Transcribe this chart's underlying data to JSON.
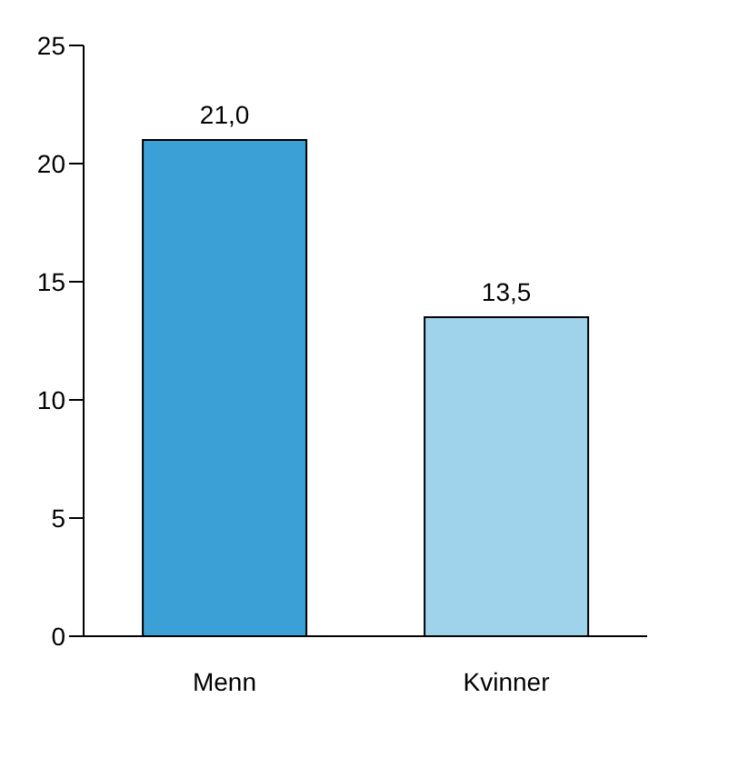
{
  "chart_data": {
    "type": "bar",
    "categories": [
      "Menn",
      "Kvinner"
    ],
    "values": [
      21.0,
      13.5
    ],
    "colors": [
      "#3aa0d5",
      "#9fd3ec"
    ],
    "value_labels": [
      "21,0",
      "13,5"
    ],
    "ylim": [
      0,
      25
    ],
    "yticks": [
      0,
      5,
      10,
      15,
      20,
      25
    ]
  }
}
